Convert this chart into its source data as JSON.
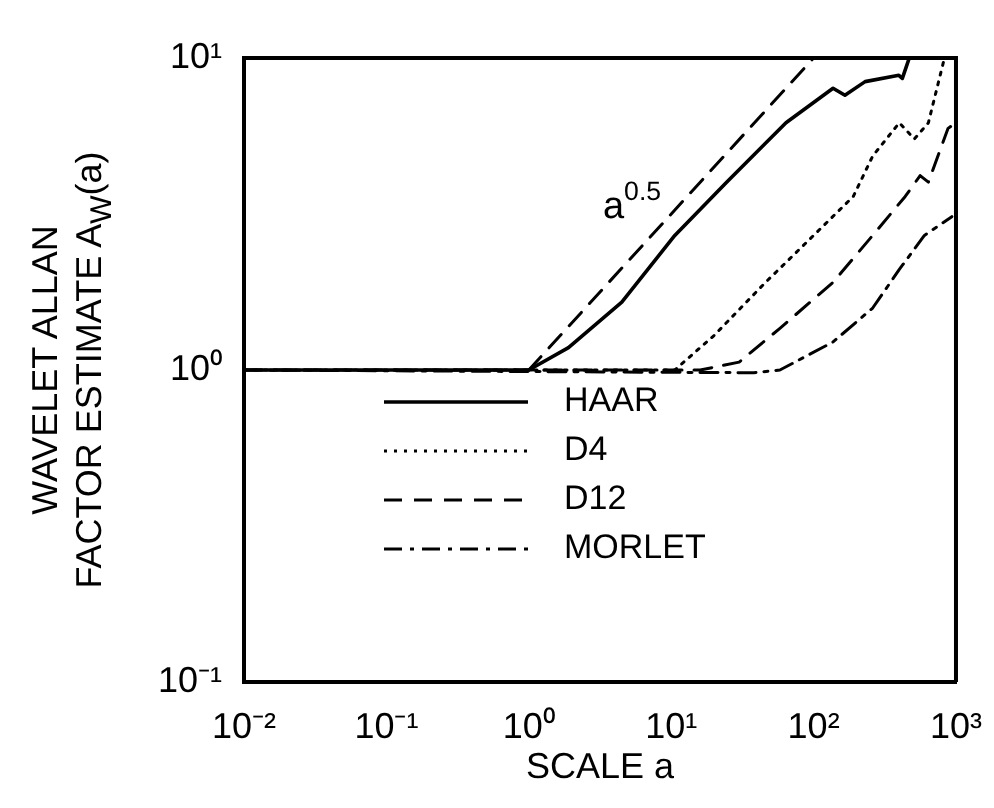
{
  "chart_data": {
    "type": "line",
    "xlabel": "SCALE a",
    "ylabel": "WAVELET ALLAN\nFACTOR ESTIMATE  A$_{W}$(a)",
    "log": "xy",
    "xlim": [
      0.01,
      1000
    ],
    "ylim": [
      0.1,
      10
    ],
    "xticks": [
      {
        "value": 0.01,
        "label": "10⁻²"
      },
      {
        "value": 0.1,
        "label": "10⁻¹"
      },
      {
        "value": 1,
        "label": "10⁰"
      },
      {
        "value": 10,
        "label": "10¹"
      },
      {
        "value": 100,
        "label": "10²"
      },
      {
        "value": 1000,
        "label": "10³"
      }
    ],
    "yticks": [
      {
        "value": 0.1,
        "label": "10⁻¹"
      },
      {
        "value": 1,
        "label": "10⁰"
      },
      {
        "value": 10,
        "label": "10¹"
      }
    ],
    "grid": false,
    "legend": "bottom",
    "marker": "none",
    "series": [
      {
        "name": "HAAR",
        "color": "#000000",
        "line_style": "solid",
        "x": [
          0.01,
          1,
          1.9,
          4.5,
          10.6,
          24.5,
          64,
          137,
          166,
          230,
          397,
          420,
          470,
          1000
        ],
        "values": [
          1,
          1,
          1.18,
          1.65,
          2.7,
          4.0,
          6.2,
          8.0,
          7.6,
          8.4,
          8.8,
          8.6,
          10,
          10
        ]
      },
      {
        "name": "D4",
        "color": "#000000",
        "line_style": "dotted",
        "x": [
          0.01,
          10.6,
          20,
          46,
          100,
          190,
          260,
          400,
          510,
          640,
          830
        ],
        "values": [
          1,
          1,
          1.29,
          1.91,
          2.7,
          3.6,
          4.85,
          6.2,
          5.5,
          6.2,
          10
        ]
      },
      {
        "name": "D12",
        "color": "#000000",
        "line_style": "dashed",
        "x": [
          0.01,
          16,
          30,
          58,
          137,
          260,
          440,
          560,
          640,
          880,
          1000
        ],
        "values": [
          1,
          1,
          1.06,
          1.36,
          1.91,
          2.7,
          3.6,
          4.2,
          4.0,
          5.95,
          6.2
        ]
      },
      {
        "name": "MORLET",
        "color": "#000000",
        "line_style": "dashdot",
        "x": [
          0.01,
          38,
          58,
          137,
          260,
          400,
          600,
          935
        ],
        "values": [
          1,
          0.98,
          1.0,
          1.23,
          1.58,
          2.1,
          2.7,
          3.1
        ]
      },
      {
        "color": "#000000",
        "line_style": "dashed",
        "x": [
          1,
          100
        ],
        "values": [
          1,
          10
        ]
      }
    ],
    "annotations": [
      "a$^{0.5}$"
    ]
  }
}
